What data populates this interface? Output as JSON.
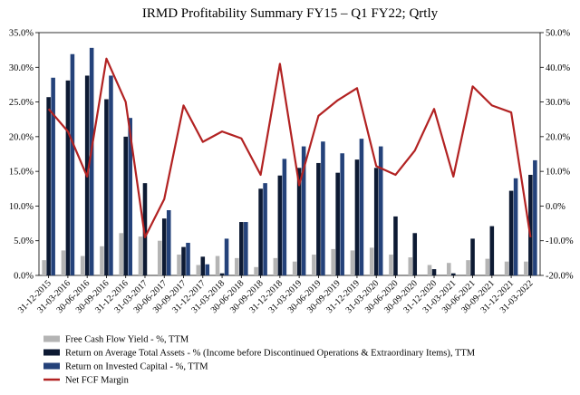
{
  "chart_data": {
    "type": "bar",
    "title": "IRMD Profitability Summary FY15 – Q1 FY22; Qrtly",
    "categories": [
      "31-12-2015",
      "31-03-2016",
      "30-06-2016",
      "30-09-2016",
      "31-12-2016",
      "31-03-2017",
      "30-06-2017",
      "30-09-2017",
      "31-12-2017",
      "31-03-2018",
      "30-06-2018",
      "30-09-2018",
      "31-12-2018",
      "31-03-2019",
      "30-06-2019",
      "30-09-2019",
      "31-12-2019",
      "31-03-2020",
      "30-06-2020",
      "30-09-2020",
      "31-12-2020",
      "31-03-2021",
      "30-06-2021",
      "30-09-2021",
      "31-12-2021",
      "31-03-2022"
    ],
    "x_tick_labels": [
      "31-12-2015",
      "31-03-2016",
      "30-06-2016",
      "30-09-2016",
      "31-12-2016",
      "31-03-2017",
      "30-06-2017",
      "30-09-2017",
      "31-12-2017",
      "31-03-2018",
      "30-06-2018",
      "30-09-2018",
      "31-12-2018",
      "31-03-2019",
      "30-06-2019",
      "30-09-2019",
      "31-12-2019",
      "31-03-2020",
      "30-06-2020",
      "30-09-2020",
      "31-12-2020",
      "31-03-2021",
      "30-06-2021",
      "30-09-2021",
      "31-12-2021",
      "31-03-2022"
    ],
    "y_left": {
      "min": 0,
      "max": 35,
      "step": 5,
      "tick_labels": [
        "0.0%",
        "5.0%",
        "10.0%",
        "15.0%",
        "20.0%",
        "25.0%",
        "30.0%",
        "35.0%"
      ]
    },
    "y_right": {
      "min": -20,
      "max": 50,
      "step": 10,
      "tick_labels": [
        "-20.0%",
        "-10.0%",
        "0.0%",
        "10.0%",
        "20.0%",
        "30.0%",
        "40.0%",
        "50.0%"
      ]
    },
    "legend_position": "bottom",
    "series": [
      {
        "name": "Free Cash Flow Yield - %, TTM",
        "type": "bar",
        "axis": "left",
        "color": "#b4b4b4",
        "values": [
          2.2,
          3.6,
          2.8,
          4.2,
          6.1,
          5.6,
          5.0,
          3.0,
          1.5,
          2.8,
          2.5,
          1.2,
          2.5,
          2.0,
          3.0,
          3.8,
          3.6,
          4.0,
          3.0,
          2.6,
          1.5,
          1.8,
          2.2,
          2.4,
          2.0,
          2.0
        ]
      },
      {
        "name": "Return on Average Total Assets - % (Income before Discontinued Operations & Extraordinary Items), TTM",
        "type": "bar",
        "axis": "left",
        "color": "#0d1a33",
        "values": [
          25.7,
          28.1,
          28.8,
          25.4,
          20.0,
          13.3,
          8.2,
          4.1,
          2.7,
          0.3,
          7.7,
          12.5,
          14.4,
          15.5,
          16.2,
          14.8,
          16.7,
          15.5,
          8.5,
          6.1,
          0.9,
          0.3,
          5.3,
          7.1,
          12.2,
          14.5
        ]
      },
      {
        "name": "Return on Invested Capital - %, TTM",
        "type": "bar",
        "axis": "left",
        "color": "#24427a",
        "values": [
          28.5,
          31.9,
          32.8,
          28.8,
          22.7,
          0.0,
          9.4,
          4.7,
          1.6,
          5.3,
          7.7,
          13.3,
          16.8,
          18.6,
          19.3,
          17.6,
          19.7,
          18.6,
          0.0,
          0.0,
          0.0,
          0.0,
          0.0,
          0.0,
          14.0,
          16.6
        ]
      },
      {
        "name": "Net FCF Margin",
        "type": "line",
        "axis": "right",
        "color": "#b22222",
        "values": [
          28.0,
          21.5,
          8.5,
          42.5,
          30.0,
          -9.0,
          2.0,
          29.0,
          18.5,
          21.5,
          19.5,
          9.0,
          41.0,
          6.0,
          26.0,
          30.5,
          34.0,
          11.5,
          9.0,
          16.0,
          28.0,
          8.5,
          34.5,
          29.0,
          27.0,
          -9.0
        ]
      }
    ]
  }
}
